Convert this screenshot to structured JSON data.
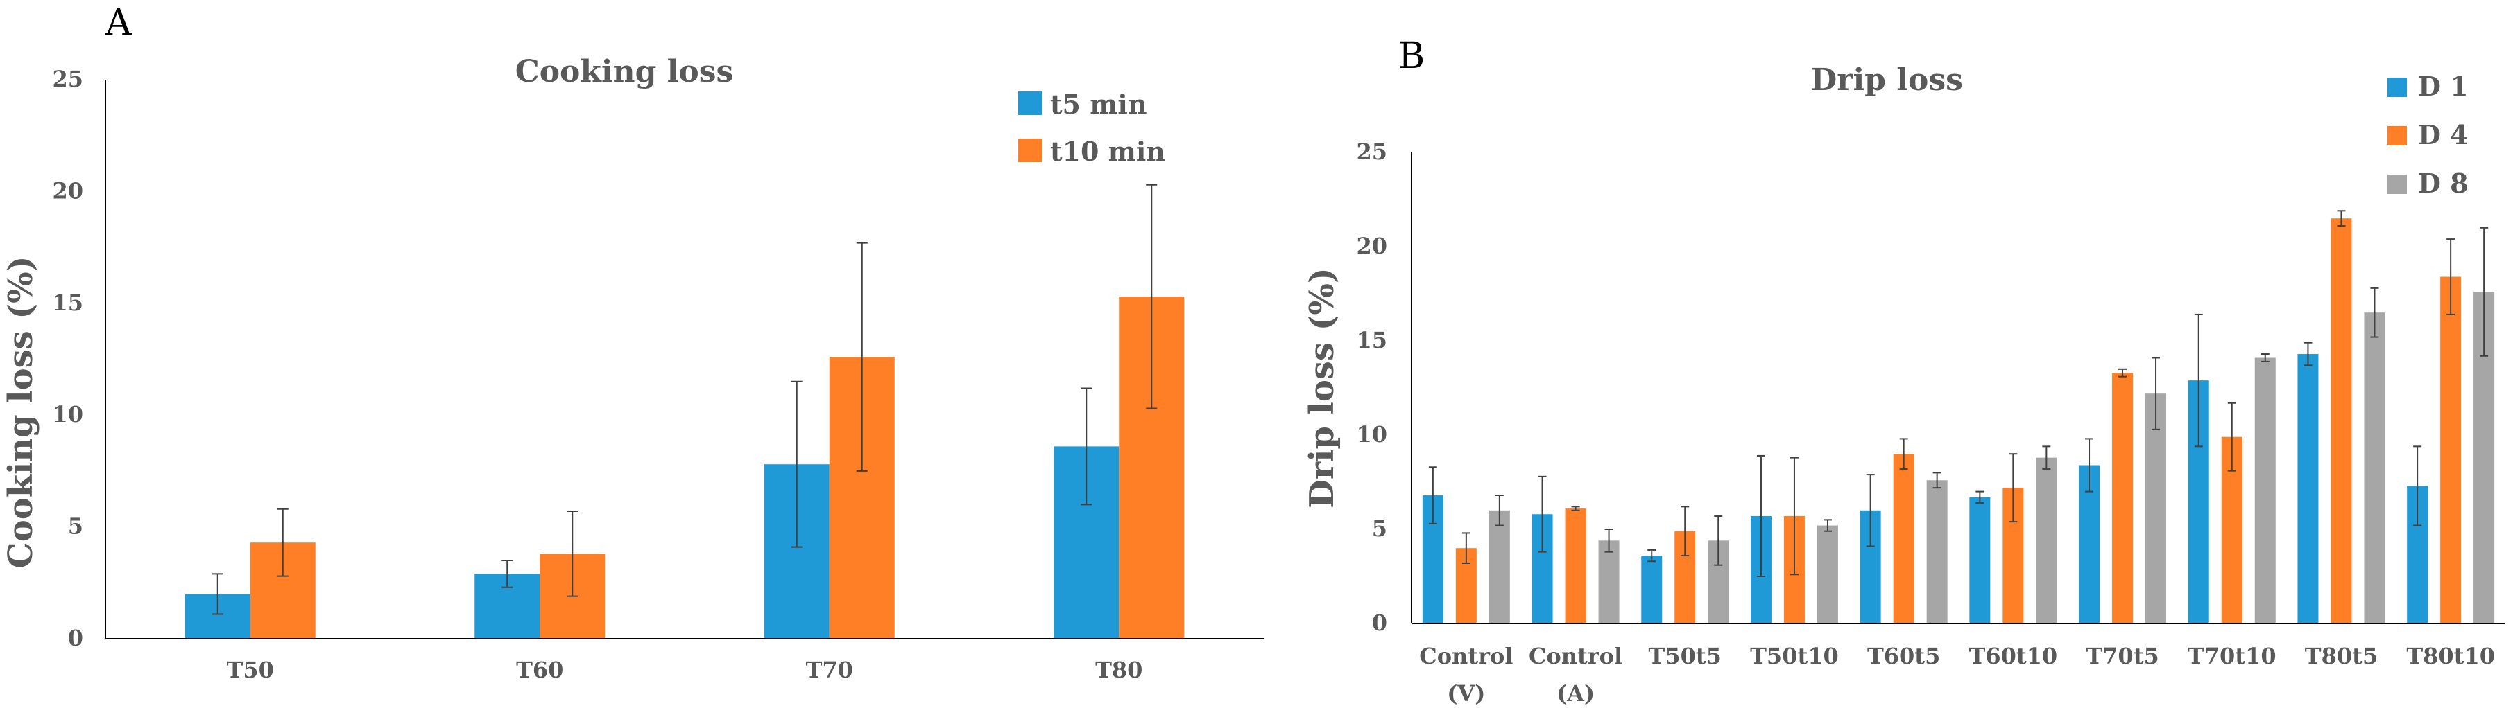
{
  "chart_data": [
    {
      "panel": "A",
      "type": "bar",
      "title": "Cooking loss",
      "xlabel": "",
      "ylabel": "Cooking loss (%)",
      "ylim": [
        0,
        25
      ],
      "yticks": [
        0,
        5,
        10,
        15,
        20,
        25
      ],
      "categories": [
        "T50",
        "T60",
        "T70",
        "T80"
      ],
      "legend_position": "top-right",
      "series": [
        {
          "name": "t5 min",
          "color": "#1f9ad6",
          "values": [
            2.0,
            2.9,
            7.8,
            8.6
          ],
          "errors": [
            0.9,
            0.6,
            3.7,
            2.6
          ]
        },
        {
          "name": "t10 min",
          "color": "#ff7f27",
          "values": [
            4.3,
            3.8,
            12.6,
            15.3
          ],
          "errors": [
            1.5,
            1.9,
            5.1,
            5.0
          ]
        }
      ]
    },
    {
      "panel": "B",
      "type": "bar",
      "title": "Drip loss",
      "xlabel": "",
      "ylabel": "Drip loss (%)",
      "ylim": [
        0,
        25
      ],
      "yticks": [
        0,
        5,
        10,
        15,
        20,
        25
      ],
      "categories": [
        [
          "Control",
          "(V)"
        ],
        [
          "Control",
          "(A)"
        ],
        [
          "T50t5"
        ],
        [
          "T50t10"
        ],
        [
          "T60t5"
        ],
        [
          "T60t10"
        ],
        [
          "T70t5"
        ],
        [
          "T70t10"
        ],
        [
          "T80t5"
        ],
        [
          "T80t10"
        ]
      ],
      "legend_position": "top-right",
      "series": [
        {
          "name": "D 1",
          "color": "#1f9ad6",
          "values": [
            6.8,
            5.8,
            3.6,
            5.7,
            6.0,
            6.7,
            8.4,
            12.9,
            14.3,
            7.3
          ],
          "errors": [
            1.5,
            2.0,
            0.3,
            3.2,
            1.9,
            0.3,
            1.4,
            3.5,
            0.6,
            2.1
          ]
        },
        {
          "name": "D 4",
          "color": "#ff7f27",
          "values": [
            4.0,
            6.1,
            4.9,
            5.7,
            9.0,
            7.2,
            13.3,
            9.9,
            21.5,
            18.4
          ],
          "errors": [
            0.8,
            0.1,
            1.3,
            3.1,
            0.8,
            1.8,
            0.2,
            1.8,
            0.4,
            2.0
          ]
        },
        {
          "name": "D 8",
          "color": "#a6a6a6",
          "values": [
            6.0,
            4.4,
            4.4,
            5.2,
            7.6,
            8.8,
            12.2,
            14.1,
            16.5,
            17.6
          ],
          "errors": [
            0.8,
            0.6,
            1.3,
            0.3,
            0.4,
            0.6,
            1.9,
            0.2,
            1.3,
            3.4
          ]
        }
      ]
    }
  ]
}
